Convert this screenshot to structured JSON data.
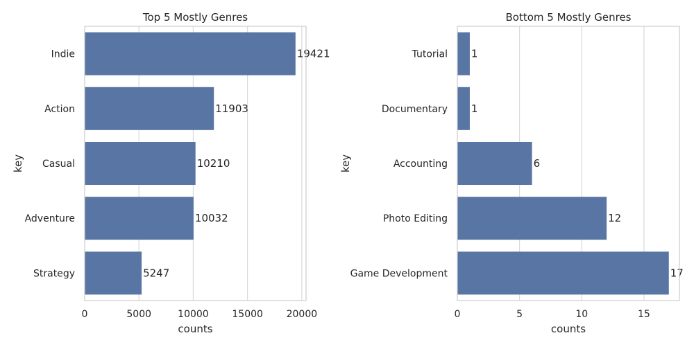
{
  "chart_data": [
    {
      "type": "bar",
      "orientation": "horizontal",
      "title": "Top 5 Mostly Genres",
      "xlabel": "counts",
      "ylabel": "key",
      "categories": [
        "Indie",
        "Action",
        "Casual",
        "Adventure",
        "Strategy"
      ],
      "values": [
        19421,
        11903,
        10210,
        10032,
        5247
      ],
      "data_labels": [
        "19421",
        "11903",
        "10210",
        "10032",
        "5247"
      ],
      "xlim": [
        0,
        20392
      ],
      "xticks": [
        0,
        5000,
        10000,
        15000,
        20000
      ],
      "xtick_labels": [
        "0",
        "5000",
        "10000",
        "15000",
        "20000"
      ],
      "grid": "vertical",
      "bar_color": "#5875a4"
    },
    {
      "type": "bar",
      "orientation": "horizontal",
      "title": "Bottom 5 Mostly Genres",
      "xlabel": "counts",
      "ylabel": "key",
      "categories": [
        "Tutorial",
        "Documentary",
        "Accounting",
        "Photo Editing",
        "Game Development"
      ],
      "values": [
        1,
        1,
        6,
        12,
        17
      ],
      "data_labels": [
        "1",
        "1",
        "6",
        "12",
        "17"
      ],
      "xlim": [
        0,
        17.85
      ],
      "xticks": [
        0,
        5,
        10,
        15
      ],
      "xtick_labels": [
        "0",
        "5",
        "10",
        "15"
      ],
      "grid": "vertical",
      "bar_color": "#5875a4"
    }
  ]
}
